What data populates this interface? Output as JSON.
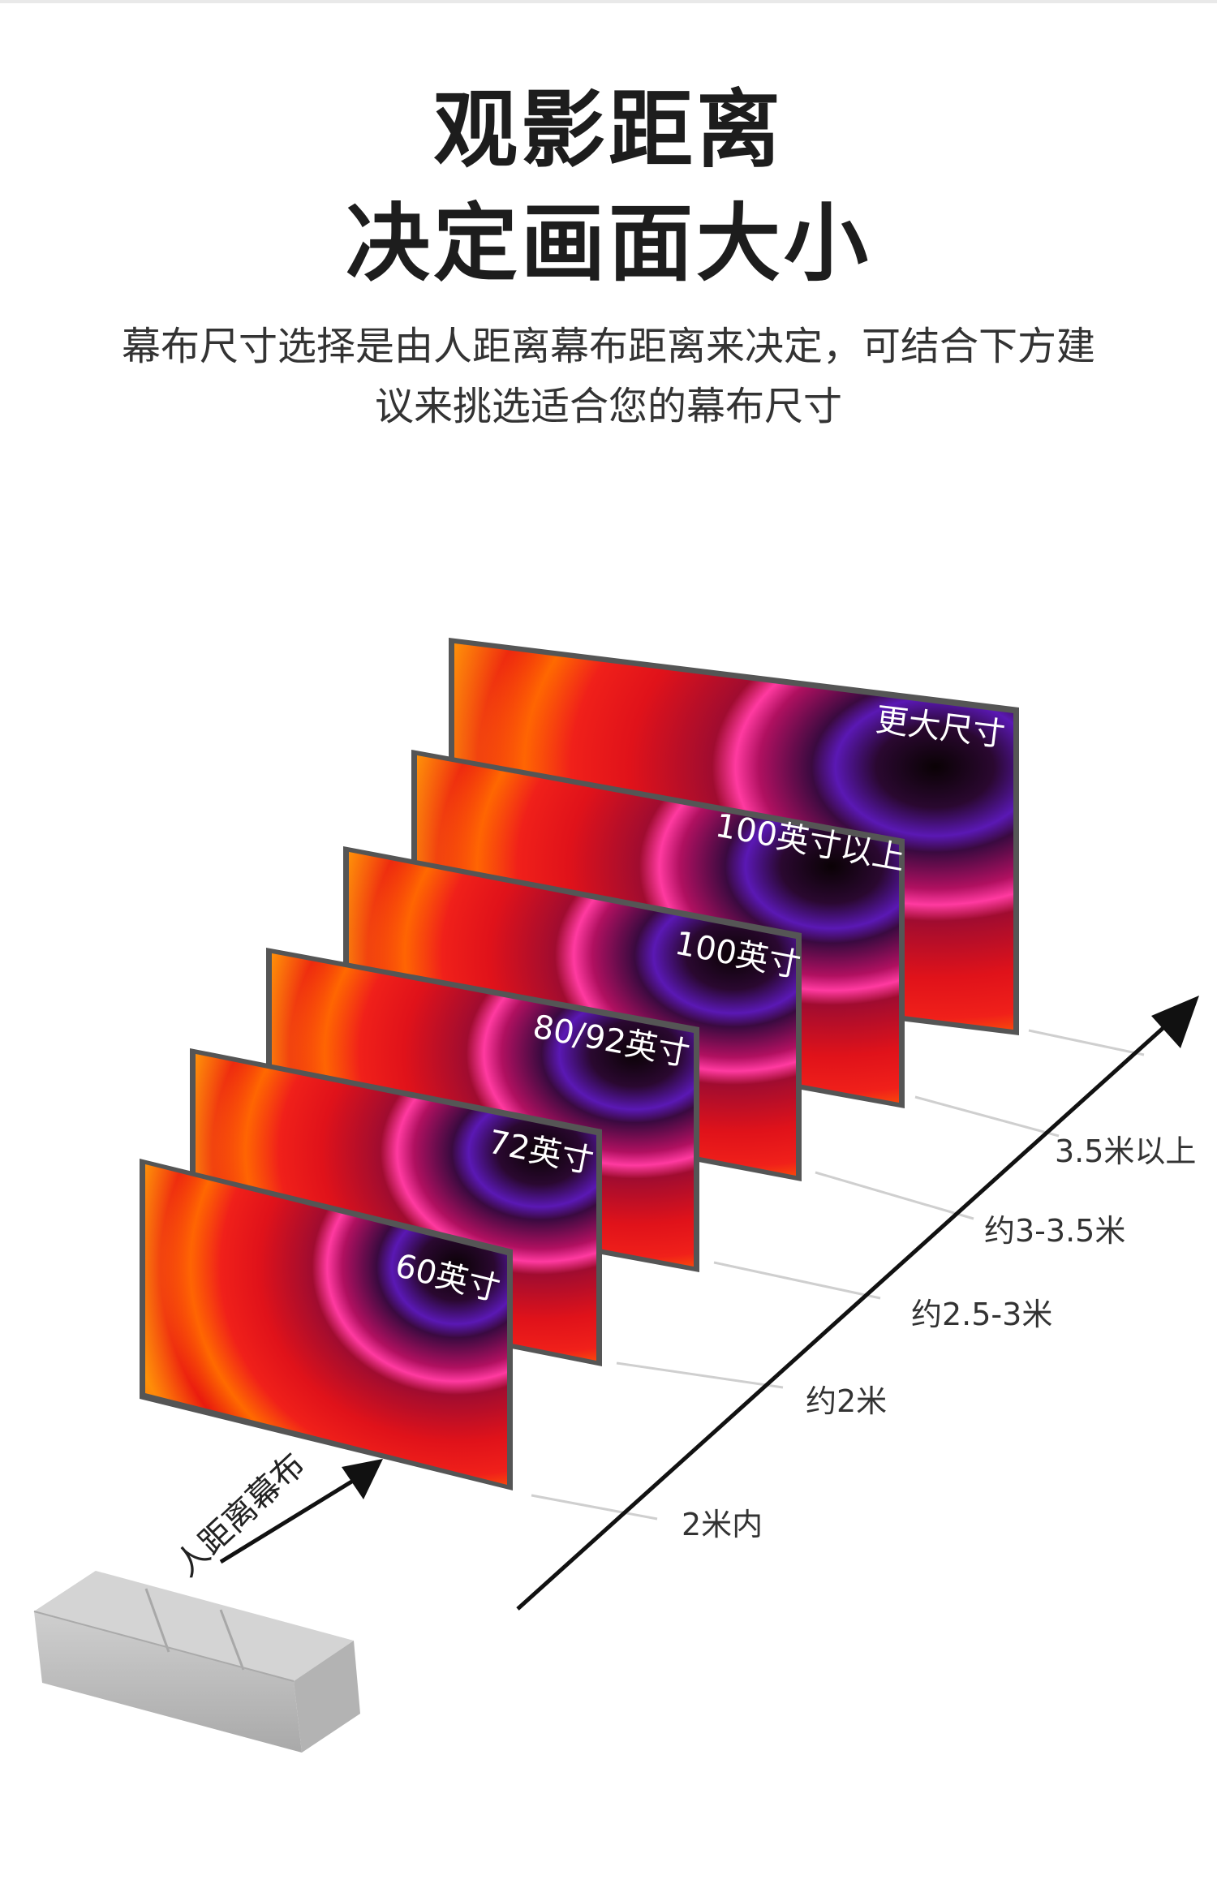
{
  "header": {
    "title_line1": "观影距离",
    "title_line2": "决定画面大小",
    "subtitle_line1": "幕布尺寸选择是由人距离幕布距离来决定，可结合下方建",
    "subtitle_line2": "议来挑选适合您的幕布尺寸"
  },
  "diagram": {
    "viewer_arrow_label": "人距离幕布",
    "screens": [
      {
        "size_label": "60英寸",
        "distance_label": "2米内"
      },
      {
        "size_label": "72英寸",
        "distance_label": "约2米"
      },
      {
        "size_label": "80/92英寸",
        "distance_label": "约2.5-3米"
      },
      {
        "size_label": "100英寸",
        "distance_label": "约3-3.5米"
      },
      {
        "size_label": "100英寸以上",
        "distance_label": "3.5米以上"
      },
      {
        "size_label": "更大尺寸",
        "distance_label": ""
      }
    ]
  },
  "colors": {
    "title": "#1d1d1d",
    "subtitle": "#333333",
    "screen_frame": "#555555",
    "screen_red": "#e0121a",
    "screen_orange": "#ff8a00",
    "screen_magenta": "#d61a78",
    "screen_purple": "#6a1aa8",
    "screen_dark": "#1a0410",
    "sofa": "#bdbdbd",
    "arrow": "#111111",
    "guide_line": "#cfcfcf"
  }
}
